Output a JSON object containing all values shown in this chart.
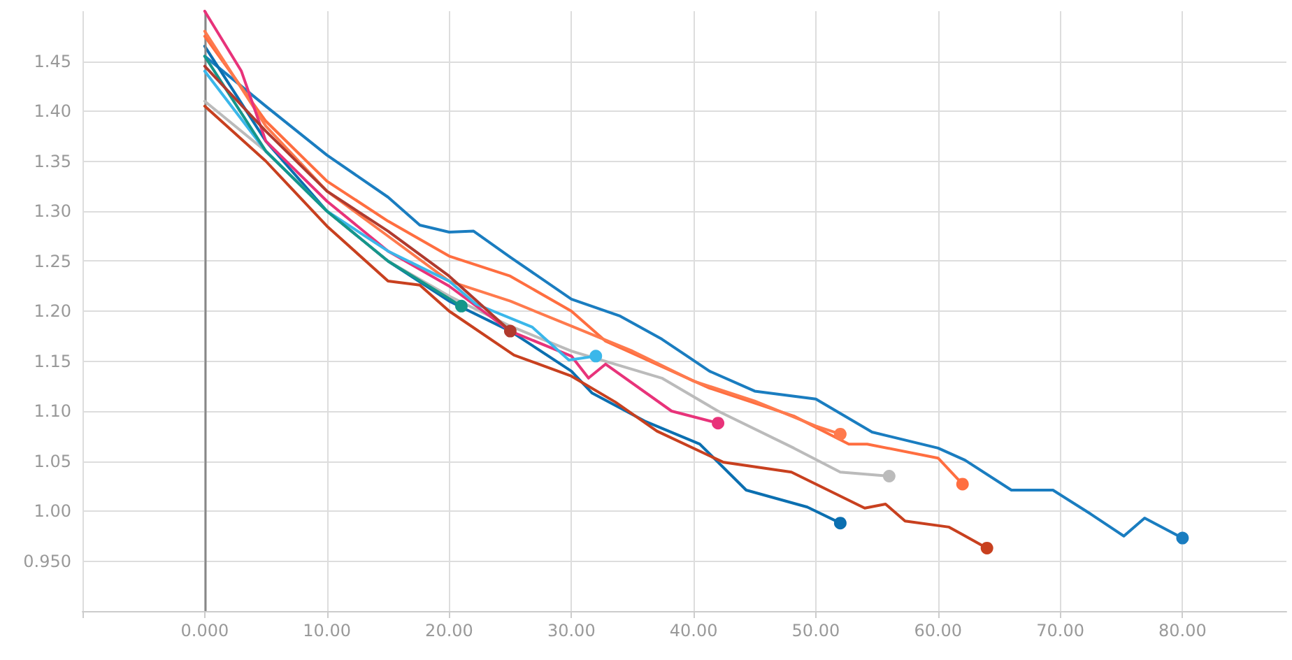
{
  "chart_data": {
    "type": "line",
    "xlim": [
      -10,
      88.5
    ],
    "ylim": [
      0.9,
      1.5
    ],
    "xticks": [
      {
        "value": -10,
        "label": null
      },
      {
        "value": 0,
        "label": "0.000"
      },
      {
        "value": 10,
        "label": "10.00"
      },
      {
        "value": 20,
        "label": "20.00"
      },
      {
        "value": 30,
        "label": "30.00"
      },
      {
        "value": 40,
        "label": "40.00"
      },
      {
        "value": 50,
        "label": "50.00"
      },
      {
        "value": 60,
        "label": "60.00"
      },
      {
        "value": 70,
        "label": "70.00"
      },
      {
        "value": 80,
        "label": "80.00"
      }
    ],
    "yticks": [
      {
        "value": 0.95,
        "label": "0.950"
      },
      {
        "value": 1,
        "label": "1.00"
      },
      1.05,
      {
        "value": 1.1,
        "label": "1.10"
      },
      1.15,
      {
        "value": 1.2,
        "label": "1.20"
      },
      1.25,
      {
        "value": 1.3,
        "label": "1.30"
      },
      1.35,
      {
        "value": 1.4,
        "label": "1.40"
      },
      1.45
    ],
    "grid": true,
    "line_style": "solid",
    "ref_lines": [
      {
        "axis": "x",
        "value": 0,
        "color": "#888888"
      }
    ],
    "series": [
      {
        "color": "#1a7dc0",
        "x": [
          0,
          5,
          10,
          15,
          17.6,
          20,
          22,
          25,
          30,
          34,
          37.4,
          41.3,
          45,
          50,
          54.6,
          60,
          62.2,
          66,
          69.4,
          72.5,
          75.2,
          76.9,
          80
        ],
        "values": [
          1.455,
          1.405,
          1.356,
          1.314,
          1.286,
          1.279,
          1.28,
          1.254,
          1.212,
          1.195,
          1.172,
          1.14,
          1.12,
          1.112,
          1.079,
          1.063,
          1.051,
          1.021,
          1.021,
          0.997,
          0.975,
          0.993,
          0.973
        ]
      },
      {
        "color": "#0b6fb0",
        "x": [
          0,
          5,
          10,
          15,
          20,
          25,
          30,
          31.7,
          36,
          40.5,
          44.3,
          49.3,
          52
        ],
        "values": [
          1.465,
          1.37,
          1.3,
          1.25,
          1.21,
          1.18,
          1.14,
          1.118,
          1.09,
          1.067,
          1.021,
          1.004,
          0.988
        ]
      },
      {
        "color": "#c8401f",
        "x": [
          0,
          5,
          10,
          15,
          17.6,
          20,
          25.3,
          30,
          33.6,
          37,
          42.4,
          48,
          54,
          55.7,
          57.3,
          60.9,
          64
        ],
        "values": [
          1.405,
          1.35,
          1.285,
          1.23,
          1.226,
          1.2,
          1.156,
          1.135,
          1.109,
          1.08,
          1.049,
          1.039,
          1.003,
          1.007,
          0.99,
          0.984,
          0.963
        ]
      },
      {
        "color": "#ff6e40",
        "x": [
          0,
          5,
          10,
          15,
          20,
          25,
          30,
          32.8,
          41.3,
          48.2,
          52.7,
          54.2,
          60,
          62
        ],
        "values": [
          1.475,
          1.39,
          1.33,
          1.29,
          1.255,
          1.235,
          1.2,
          1.17,
          1.123,
          1.095,
          1.067,
          1.067,
          1.053,
          1.027
        ]
      },
      {
        "color": "#ff7a4d",
        "x": [
          0,
          5,
          10,
          15,
          20,
          25,
          30,
          35,
          40,
          45,
          50,
          52
        ],
        "values": [
          1.48,
          1.385,
          1.32,
          1.275,
          1.23,
          1.21,
          1.185,
          1.16,
          1.13,
          1.11,
          1.085,
          1.077
        ]
      },
      {
        "color": "#bbbbbb",
        "x": [
          0,
          5,
          10,
          15,
          20,
          25,
          30,
          37.4,
          42,
          48.2,
          52,
          56
        ],
        "values": [
          1.41,
          1.36,
          1.3,
          1.25,
          1.215,
          1.185,
          1.16,
          1.133,
          1.1,
          1.063,
          1.039,
          1.035
        ]
      },
      {
        "color": "#e8337a",
        "x": [
          0,
          3,
          5,
          10,
          15,
          20,
          25,
          30,
          31.4,
          32.8,
          38.2,
          42
        ],
        "values": [
          1.5,
          1.44,
          1.37,
          1.31,
          1.26,
          1.225,
          1.18,
          1.155,
          1.133,
          1.147,
          1.1,
          1.088
        ]
      },
      {
        "color": "#3bb7ea",
        "x": [
          0,
          5,
          10,
          15,
          20,
          22.2,
          26.8,
          29.8,
          32
        ],
        "values": [
          1.44,
          1.36,
          1.3,
          1.26,
          1.23,
          1.207,
          1.184,
          1.151,
          1.155
        ]
      },
      {
        "color": "#14968a",
        "x": [
          0,
          5,
          10,
          15,
          21
        ],
        "values": [
          1.455,
          1.36,
          1.3,
          1.25,
          1.205
        ]
      },
      {
        "color": "#b03a2e",
        "x": [
          0,
          5,
          10,
          15,
          20,
          25
        ],
        "values": [
          1.445,
          1.38,
          1.32,
          1.28,
          1.235,
          1.18
        ]
      }
    ]
  }
}
